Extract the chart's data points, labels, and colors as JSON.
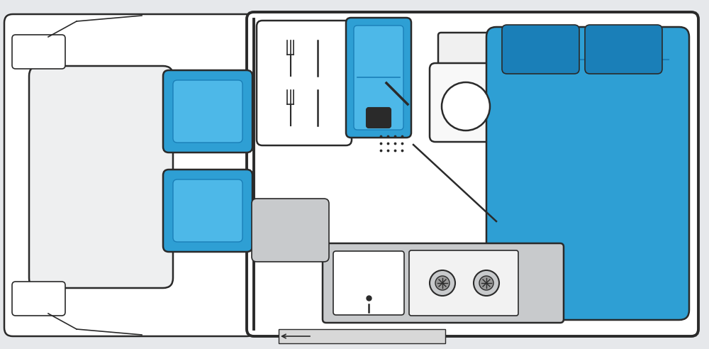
{
  "bg_color": "#e6e8eb",
  "white": "#ffffff",
  "outline": "#2a2a2a",
  "blue": "#2e9fd4",
  "blue_light": "#4db8e8",
  "blue_dark": "#1a7fb8",
  "gray_light": "#c8cacc",
  "gray_med": "#b0b2b5",
  "gray_van": "#f0f1f2",
  "lw_thin": 1.2,
  "lw_main": 1.8,
  "lw_thick": 2.8
}
